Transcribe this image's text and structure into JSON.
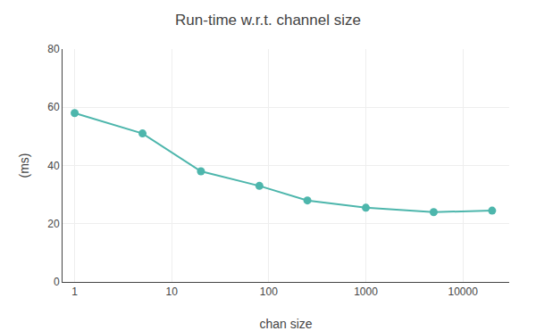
{
  "chart_data": {
    "type": "line",
    "title": "Run-time w.r.t. channel size",
    "xlabel": "chan size",
    "ylabel": "(ms)",
    "x": [
      1,
      5,
      20,
      80,
      250,
      1000,
      5000,
      20000
    ],
    "values": [
      58.0,
      51.0,
      38.0,
      33.0,
      28.0,
      25.5,
      24.0,
      24.5
    ],
    "color": "#4db6ac",
    "marker": "circle",
    "log": "x",
    "xlim": [
      0.75,
      30000
    ],
    "xticks": [
      1,
      10,
      100,
      1000,
      10000
    ],
    "ylim": [
      0,
      80
    ],
    "yticks": [
      0,
      20,
      40,
      60,
      80
    ],
    "grid": true
  }
}
